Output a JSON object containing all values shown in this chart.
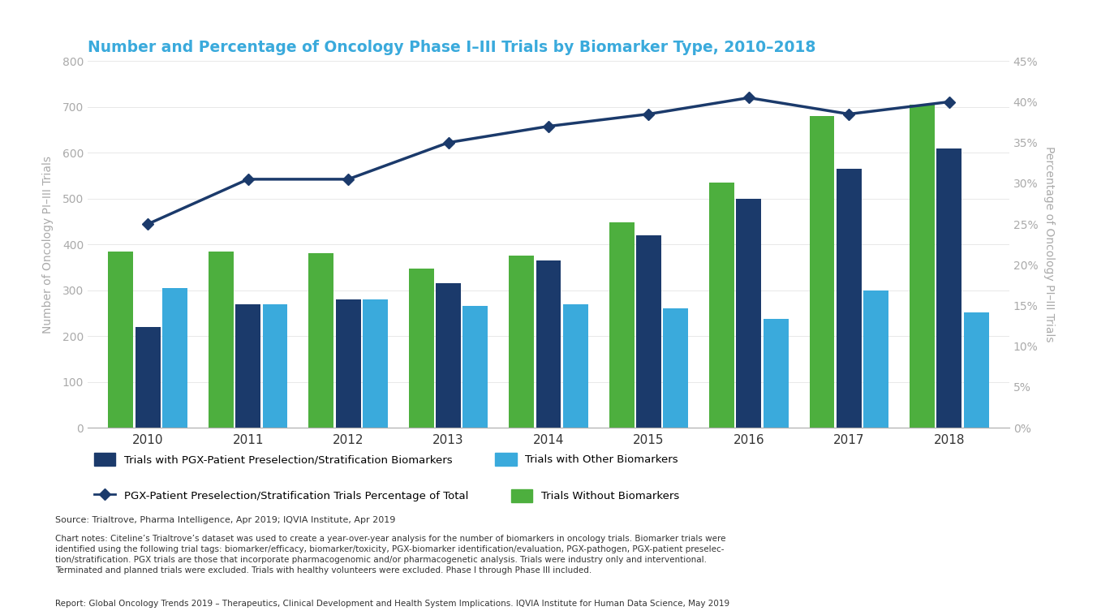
{
  "years": [
    2010,
    2011,
    2012,
    2013,
    2014,
    2015,
    2016,
    2017,
    2018
  ],
  "pgx_trials": [
    220,
    270,
    280,
    315,
    365,
    420,
    500,
    565,
    610
  ],
  "other_biomarker_trials": [
    305,
    270,
    280,
    265,
    270,
    260,
    238,
    300,
    252
  ],
  "without_biomarker_trials": [
    385,
    385,
    380,
    348,
    375,
    448,
    535,
    680,
    705
  ],
  "pct_line": [
    25.0,
    30.5,
    30.5,
    35.0,
    37.0,
    38.5,
    40.5,
    38.5,
    40.0
  ],
  "bar_colors": {
    "pgx": "#1B3A6B",
    "other": "#3AAADC",
    "without": "#4DAF3E"
  },
  "line_color": "#1B3A6B",
  "title": "Number and Percentage of Oncology Phase I–III Trials by Biomarker Type, 2010–2018",
  "ylabel_left": "Number of Oncology PI–III Trials",
  "ylabel_right": "Percentage of Oncology PI–III Trials",
  "ylim_left": [
    0,
    800
  ],
  "ylim_right": [
    0,
    0.45
  ],
  "yticks_left": [
    0,
    100,
    200,
    300,
    400,
    500,
    600,
    700,
    800
  ],
  "yticks_right": [
    0.0,
    0.05,
    0.1,
    0.15,
    0.2,
    0.25,
    0.3,
    0.35,
    0.4,
    0.45
  ],
  "ytick_labels_right": [
    "0%",
    "5%",
    "10%",
    "15%",
    "20%",
    "25%",
    "30%",
    "35%",
    "40%",
    "45%"
  ],
  "source_text": "Source: Trialtrove, Pharma Intelligence, Apr 2019; IQVIA Institute, Apr 2019",
  "note_text": "Chart notes: Citeline’s Trialtrove’s dataset was used to create a year-over-year analysis for the number of biomarkers in oncology trials. Biomarker trials were\nidentified using the following trial tags: biomarker/efficacy, biomarker/toxicity, PGX-biomarker identification/evaluation, PGX-pathogen, PGX-patient preselec-\ntion/stratification. PGX trials are those that incorporate pharmacogenomic and/or pharmacogenetic analysis. Trials were industry only and interventional.\nTerminated and planned trials were excluded. Trials with healthy volunteers were excluded. Phase I through Phase III included.",
  "report_text": "Report: Global Oncology Trends 2019 – Therapeutics, Clinical Development and Health System Implications. IQVIA Institute for Human Data Science, May 2019",
  "title_color": "#3AAADC",
  "axis_color": "#AAAAAA",
  "text_color": "#555555",
  "background_color": "#FFFFFF"
}
